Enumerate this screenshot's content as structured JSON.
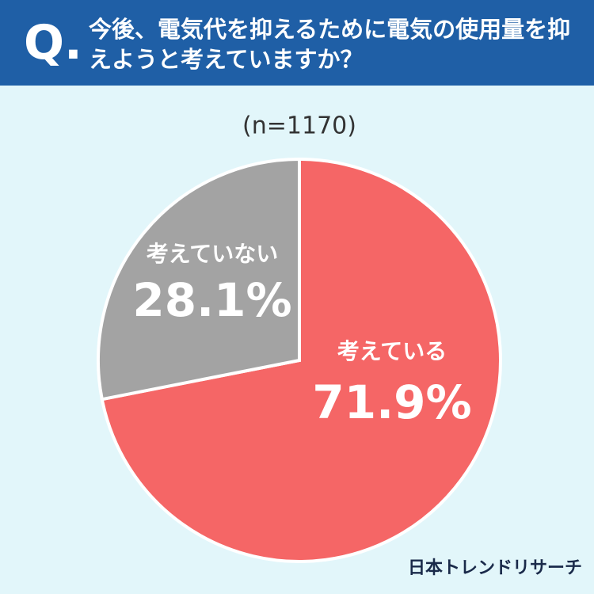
{
  "header": {
    "mark": "Q.",
    "title": "今後、電気代を抑えるために電気の使用量を抑えようと考えていますか？"
  },
  "chart_data": {
    "type": "pie",
    "subtitle": "(n=1170)",
    "categories": [
      "考えている",
      "考えていない"
    ],
    "values": [
      71.9,
      28.1
    ],
    "value_labels": [
      "71.9%",
      "28.1%"
    ],
    "colors": [
      "#f56666",
      "#a3a3a3"
    ]
  },
  "footer": {
    "brand": "日本トレンドリサーチ"
  }
}
